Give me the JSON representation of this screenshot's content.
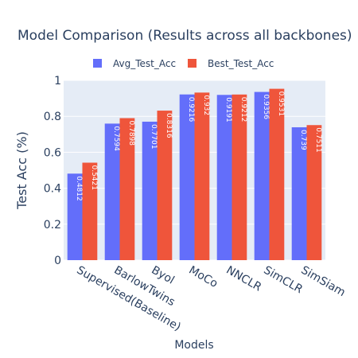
{
  "chart_data": {
    "type": "bar",
    "title": "Model Comparison (Results across all backbones)",
    "xlabel": "Models",
    "ylabel": "Test Acc (%)",
    "ylim": [
      0,
      1
    ],
    "yticks": [
      "0",
      "0.2",
      "0.4",
      "0.6",
      "0.8",
      "1"
    ],
    "grid": true,
    "legend_position": "top-center",
    "categories": [
      "Supervised(Baseline)",
      "BarlowTwins",
      "Byol",
      "MoCo",
      "NNCLR",
      "SimCLR",
      "SimSiam"
    ],
    "series": [
      {
        "name": "Avg_Test_Acc",
        "color": "#636efa",
        "values": [
          0.4812,
          0.7594,
          0.7701,
          0.9216,
          0.9191,
          0.9356,
          0.739
        ],
        "labels": [
          "0.4812",
          "0.7594",
          "0.7701",
          "0.9216",
          "0.9191",
          "0.9356",
          "0.739"
        ]
      },
      {
        "name": "Best_Test_Acc",
        "color": "#ef553b",
        "values": [
          0.5421,
          0.7898,
          0.8316,
          0.932,
          0.9212,
          0.9531,
          0.7511
        ],
        "labels": [
          "0.5421",
          "0.7898",
          "0.8316",
          "0.932",
          "0.9212",
          "0.9531",
          "0.7511"
        ]
      }
    ],
    "plot_background": "#e5ecf6",
    "gridline_color": "#ffffff"
  }
}
